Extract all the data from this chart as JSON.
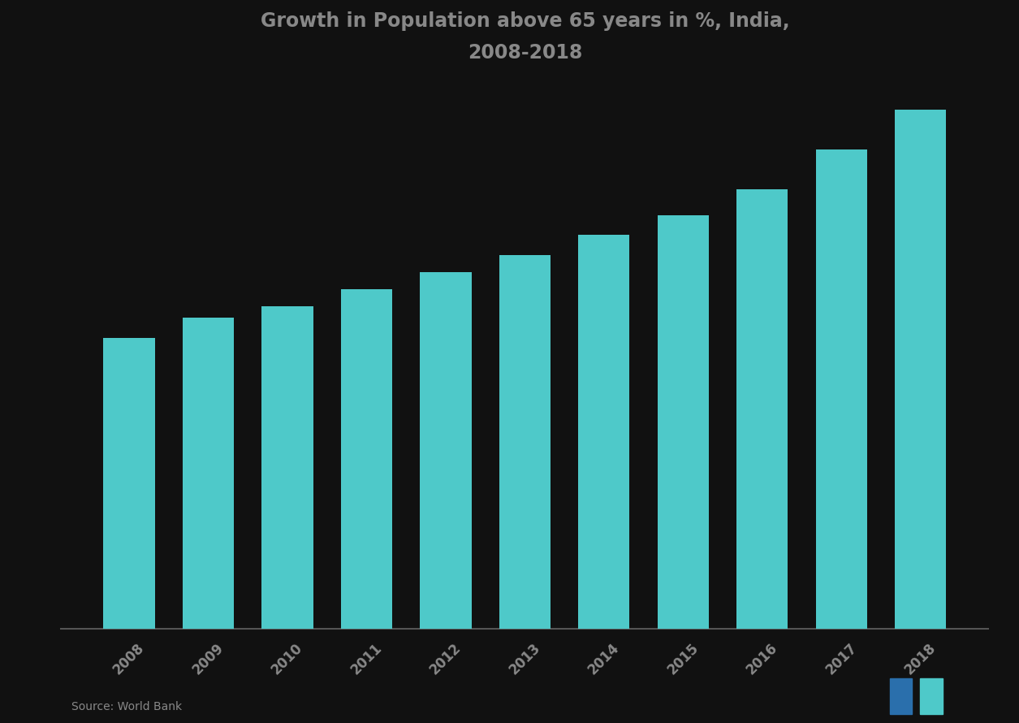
{
  "title_line1": "Growth in Population above 65 years in %, India,",
  "title_line2": "2008-2018",
  "years": [
    "2008",
    "2009",
    "2010",
    "2011",
    "2012",
    "2013",
    "2014",
    "2015",
    "2016",
    "2017",
    "2018"
  ],
  "values": [
    5.1,
    5.45,
    5.65,
    5.95,
    6.25,
    6.55,
    6.9,
    7.25,
    7.7,
    8.4,
    9.1
  ],
  "bar_color": "#4EC9C9",
  "background_color": "#111111",
  "text_color": "#888888",
  "title_color": "#888888",
  "axis_line_color": "#555555",
  "source_text": "Source: World Bank",
  "ylim_min": 0,
  "ylim_max": 9.5,
  "bar_width": 0.65,
  "title_fontsize": 17,
  "tick_fontsize": 12
}
